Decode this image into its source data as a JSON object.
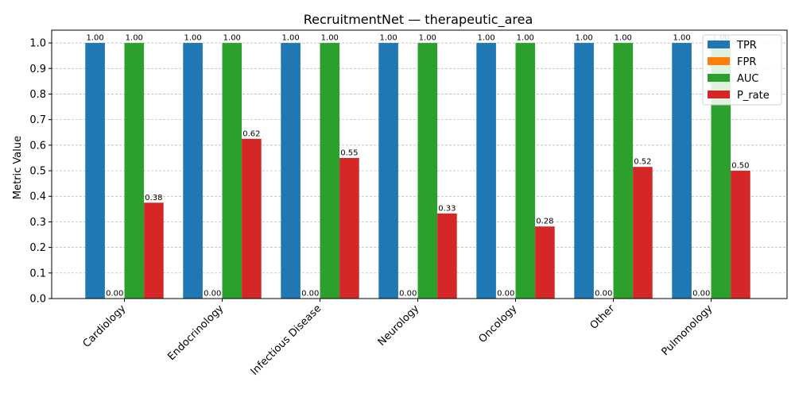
{
  "chart_data": {
    "type": "bar",
    "title": "RecruitmentNet — therapeutic_area",
    "xlabel": "",
    "ylabel": "Metric Value",
    "ylim": [
      0,
      1.05
    ],
    "yticks": [
      "0.0",
      "0.1",
      "0.2",
      "0.3",
      "0.4",
      "0.5",
      "0.6",
      "0.7",
      "0.8",
      "0.9",
      "1.0"
    ],
    "grid": "y-dashed",
    "legend_position": "top-right",
    "categories": [
      "Cardiology",
      "Endocrinology",
      "Infectious Disease",
      "Neurology",
      "Oncology",
      "Other",
      "Pulmonology"
    ],
    "series": [
      {
        "name": "TPR",
        "color": "#1f77b4",
        "values": [
          1.0,
          1.0,
          1.0,
          1.0,
          1.0,
          1.0,
          1.0
        ],
        "labels": [
          "1.00",
          "1.00",
          "1.00",
          "1.00",
          "1.00",
          "1.00",
          "1.00"
        ]
      },
      {
        "name": "FPR",
        "color": "#ff7f0e",
        "values": [
          0.0,
          0.0,
          0.0,
          0.0,
          0.0,
          0.0,
          0.0
        ],
        "labels": [
          "0.00",
          "0.00",
          "0.00",
          "0.00",
          "0.00",
          "0.00",
          "0.00"
        ]
      },
      {
        "name": "AUC",
        "color": "#2ca02c",
        "values": [
          1.0,
          1.0,
          1.0,
          1.0,
          1.0,
          1.0,
          1.0
        ],
        "labels": [
          "1.00",
          "1.00",
          "1.00",
          "1.00",
          "1.00",
          "1.00",
          "1.00"
        ]
      },
      {
        "name": "P_rate",
        "color": "#d62728",
        "values": [
          0.375,
          0.625,
          0.55,
          0.333,
          0.282,
          0.515,
          0.5
        ],
        "labels": [
          "0.38",
          "0.62",
          "0.55",
          "0.33",
          "0.28",
          "0.52",
          "0.50"
        ]
      }
    ]
  }
}
